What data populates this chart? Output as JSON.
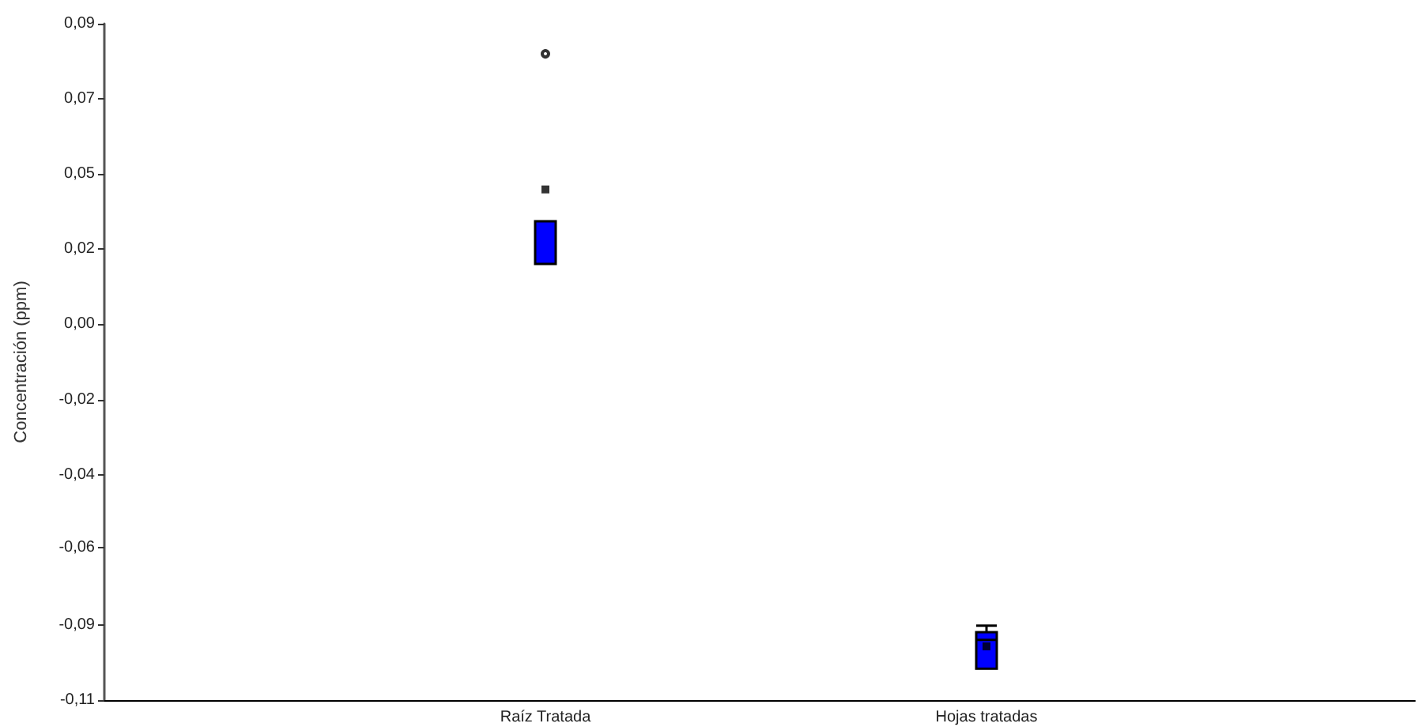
{
  "chart_data": {
    "type": "box",
    "ylabel": "Concentración (ppm)",
    "categories": [
      "Raíz Tratada",
      "Hojas tratadas"
    ],
    "series": [
      {
        "color": "#0000ff",
        "boxes": [
          {
            "low": 0.019,
            "q1": 0.019,
            "median": 0.019,
            "q3": 0.0316,
            "high": 0.0316,
            "mean": 0.041,
            "outliers": [
              0.0811
            ]
          },
          {
            "low": -0.1007,
            "q1": -0.1007,
            "median": -0.0922,
            "q3": -0.0899,
            "high": -0.088,
            "mean": -0.0941
          }
        ]
      }
    ],
    "ylim": [
      -0.11,
      0.09
    ],
    "yticks": [
      {
        "value": -0.11,
        "label": "-0,11"
      },
      {
        "value": -0.0878,
        "label": "-0,09"
      },
      {
        "value": -0.0649,
        "label": "-0,06"
      },
      {
        "value": -0.0433,
        "label": "-0,04"
      },
      {
        "value": -0.0211,
        "label": "-0,02"
      },
      {
        "value": 0.0011,
        "label": "0,00"
      },
      {
        "value": 0.0233,
        "label": "0,02"
      },
      {
        "value": 0.0456,
        "label": "0,05"
      },
      {
        "value": 0.0678,
        "label": "0,07"
      },
      {
        "value": 0.09,
        "label": "0,09"
      }
    ],
    "marker": "square"
  }
}
